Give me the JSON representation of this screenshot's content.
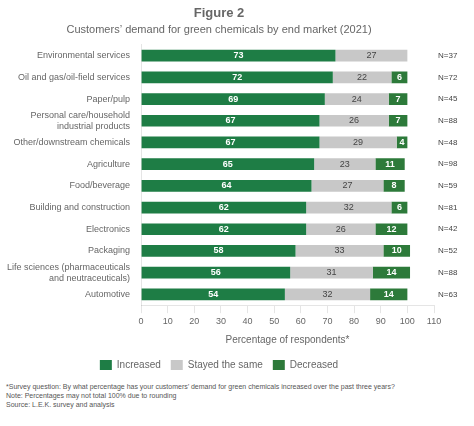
{
  "chart_data": {
    "type": "bar",
    "orientation": "horizontal",
    "stacked": true,
    "title": "Figure 2",
    "subtitle": "Customers’ demand for green chemicals by end market (2021)",
    "categories": [
      "Environmental services",
      "Oil and gas/oil-field services",
      "Paper/pulp",
      "Personal care/household\nindustrial products",
      "Other/downstream chemicals",
      "Agriculture",
      "Food/beverage",
      "Building and construction",
      "Electronics",
      "Packaging",
      "Life sciences (pharmaceuticals\nand neutraceuticals)",
      "Automotive"
    ],
    "series": [
      {
        "name": "Increased",
        "color": "#1e7d45",
        "values": [
          73,
          72,
          69,
          67,
          67,
          65,
          64,
          62,
          62,
          58,
          56,
          54
        ]
      },
      {
        "name": "Stayed the same",
        "color": "#c8c8c8",
        "values": [
          27,
          22,
          24,
          26,
          29,
          23,
          27,
          32,
          26,
          33,
          31,
          32
        ]
      },
      {
        "name": "Decreased",
        "color": "#2d7a3a",
        "values": [
          0,
          6,
          7,
          7,
          4,
          11,
          8,
          6,
          12,
          10,
          14,
          14
        ]
      }
    ],
    "annotations": [
      "N=37",
      "N=72",
      "N=45",
      "N=88",
      "N=48",
      "N=98",
      "N=59",
      "N=81",
      "N=42",
      "N=52",
      "N=88",
      "N=63"
    ],
    "xlabel": "Percentage of respondents*",
    "xlim": [
      0,
      110
    ],
    "xticks": [
      0,
      10,
      20,
      30,
      40,
      50,
      60,
      70,
      80,
      90,
      100,
      110
    ],
    "grid": false,
    "legend": "bottom",
    "data_labels": true,
    "footnotes": [
      "*Survey question: By what percentage has your customers’ demand for green chemicals increased over the past three years?",
      "Note: Percentages may not total 100% due to rounding",
      "Source: L.E.K. survey and analysis"
    ]
  }
}
